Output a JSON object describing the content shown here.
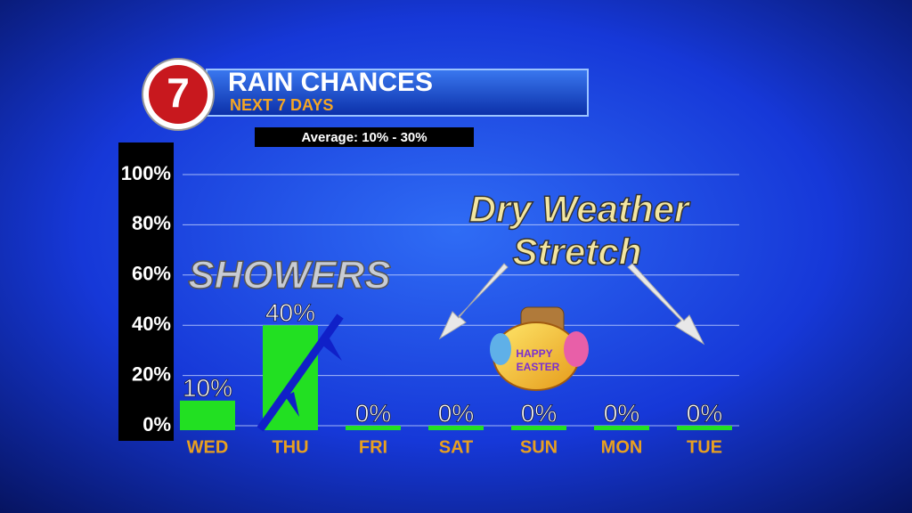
{
  "chart_data": {
    "type": "bar",
    "logo": "7",
    "title": "RAIN CHANCES",
    "subtitle": "NEXT 7 DAYS",
    "note": "Average: 10% - 30%",
    "annotations": [
      "SHOWERS",
      "Dry Weather",
      "Stretch",
      "HAPPY",
      "EASTER"
    ],
    "categories": [
      "WED",
      "THU",
      "FRI",
      "SAT",
      "SUN",
      "MON",
      "TUE"
    ],
    "values": [
      10,
      40,
      0,
      0,
      0,
      0,
      0
    ],
    "value_labels": [
      "10%",
      "40%",
      "0%",
      "0%",
      "0%",
      "0%",
      "0%"
    ],
    "color": "#22e022",
    "ylim": [
      0,
      100
    ],
    "yticks": [
      {
        "value": 0,
        "label": "0%"
      },
      {
        "value": 20,
        "label": "20%"
      },
      {
        "value": 40,
        "label": "40%"
      },
      {
        "value": 60,
        "label": "60%"
      },
      {
        "value": 80,
        "label": "80%"
      },
      {
        "value": 100,
        "label": "100%"
      }
    ],
    "grid": true
  }
}
